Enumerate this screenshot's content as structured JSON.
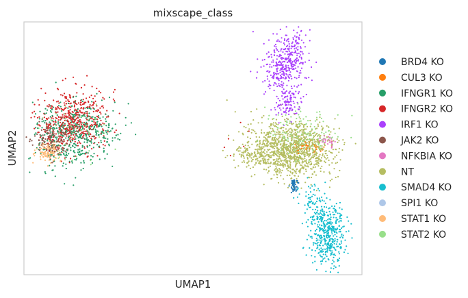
{
  "chart_data": {
    "type": "scatter",
    "title": "mixscape_class",
    "xlabel": "UMAP1",
    "ylabel": "UMAP2",
    "grid": false,
    "legend_position": "right",
    "xticks": [],
    "yticks": [],
    "series": [
      {
        "name": "BRD4 KO",
        "color": "#1f77b4"
      },
      {
        "name": "CUL3 KO",
        "color": "#ff7f0e"
      },
      {
        "name": "IFNGR1 KO",
        "color": "#279e68"
      },
      {
        "name": "IFNGR2 KO",
        "color": "#d62728"
      },
      {
        "name": "IRF1 KO",
        "color": "#aa40fc"
      },
      {
        "name": "JAK2 KO",
        "color": "#8c564b"
      },
      {
        "name": "NFKBIA KO",
        "color": "#e377c2"
      },
      {
        "name": "NT",
        "color": "#b5bd61"
      },
      {
        "name": "SMAD4 KO",
        "color": "#17becf"
      },
      {
        "name": "SPI1 KO",
        "color": "#aec7e8"
      },
      {
        "name": "STAT1 KO",
        "color": "#ffbb78"
      },
      {
        "name": "STAT2 KO",
        "color": "#98df8a"
      }
    ]
  }
}
